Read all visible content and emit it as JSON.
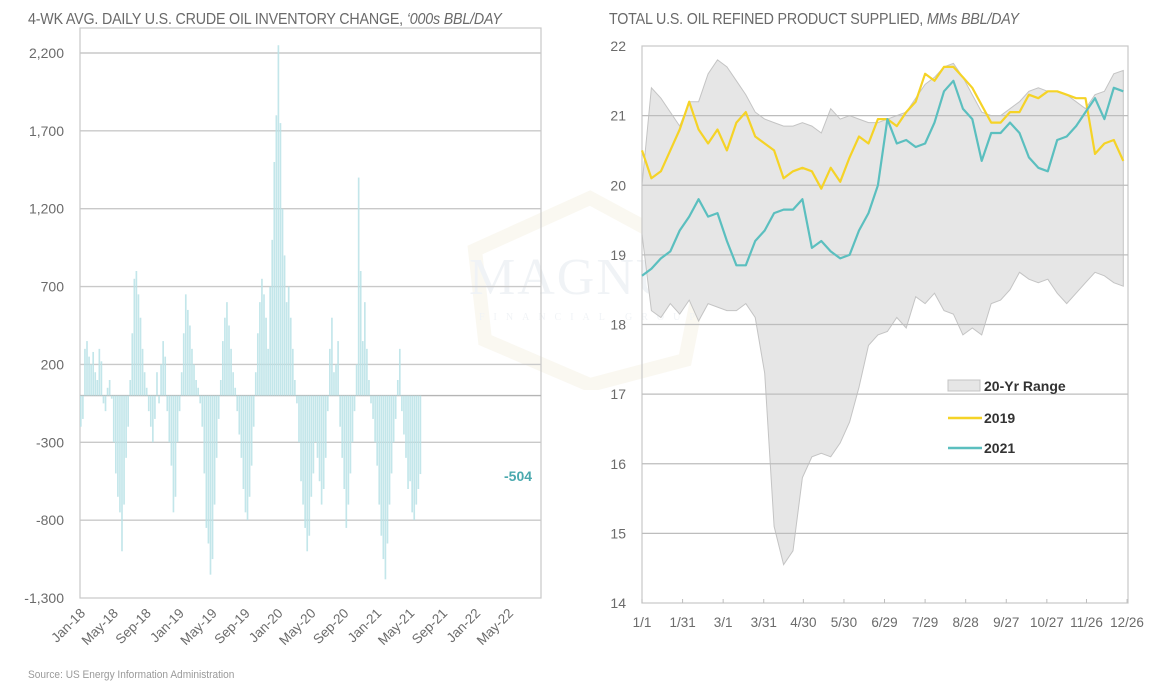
{
  "source": "Source: US Energy Information Administration",
  "watermark": {
    "text": "MAGNUS",
    "subtext": "FINANCIAL GROUP"
  },
  "chart_data": [
    {
      "type": "bar",
      "title": "4-WK AVG. DAILY U.S. CRUDE OIL INVENTORY CHANGE, ",
      "title_units": "‘000s BBL/DAY",
      "xlabel": "",
      "ylabel": "",
      "ylim": [
        -1300,
        2200
      ],
      "yticks": [
        2200,
        1700,
        1200,
        700,
        200,
        -300,
        -800,
        -1300
      ],
      "ytick_labels": [
        "2,200",
        "1,700",
        "1,200",
        "700",
        "200",
        "-300",
        "-800",
        "-1,300"
      ],
      "xlim_months": [
        0,
        56
      ],
      "xticks_months": [
        0,
        4,
        8,
        12,
        16,
        20,
        24,
        28,
        32,
        36,
        40,
        44,
        48,
        52
      ],
      "xtick_labels": [
        "Jan-18",
        "May-18",
        "Sep-18",
        "Jan-19",
        "May-19",
        "Sep-19",
        "Jan-20",
        "May-20",
        "Sep-20",
        "Jan-21",
        "May-21",
        "Sep-21",
        "Jan-22",
        "May-22"
      ],
      "grid": true,
      "color": "#b8e2e6",
      "bar_interval_months": 0.25,
      "values": [
        -200,
        -150,
        300,
        350,
        250,
        200,
        280,
        150,
        100,
        300,
        220,
        -50,
        -100,
        50,
        100,
        -20,
        -300,
        -500,
        -650,
        -750,
        -1000,
        -700,
        -400,
        -200,
        100,
        400,
        750,
        800,
        650,
        500,
        300,
        150,
        50,
        -100,
        -200,
        -300,
        -150,
        150,
        -50,
        200,
        350,
        250,
        -100,
        -300,
        -450,
        -750,
        -650,
        -300,
        -100,
        150,
        400,
        650,
        550,
        450,
        300,
        200,
        100,
        50,
        -50,
        -200,
        -500,
        -850,
        -950,
        -1150,
        -1050,
        -700,
        -400,
        -150,
        100,
        350,
        500,
        600,
        450,
        300,
        150,
        50,
        -100,
        -250,
        -400,
        -600,
        -750,
        -800,
        -650,
        -450,
        -200,
        150,
        400,
        600,
        750,
        650,
        500,
        300,
        700,
        1000,
        1500,
        1800,
        2250,
        1750,
        1200,
        900,
        600,
        700,
        500,
        300,
        100,
        -50,
        -300,
        -550,
        -700,
        -850,
        -1000,
        -900,
        -650,
        -500,
        -300,
        -400,
        -550,
        -700,
        -600,
        -400,
        -100,
        300,
        500,
        150,
        200,
        350,
        -200,
        -400,
        -600,
        -850,
        -700,
        -500,
        -300,
        -100,
        200,
        1400,
        800,
        350,
        600,
        300,
        100,
        -50,
        -150,
        -300,
        -450,
        -700,
        -900,
        -1050,
        -1180,
        -950,
        -700,
        -500,
        -300,
        -150,
        100,
        300,
        -100,
        -250,
        -400,
        -600,
        -550,
        -750,
        -800,
        -700,
        -600,
        -504
      ],
      "annotation": {
        "text": "-504",
        "color": "#4aa9ae"
      }
    },
    {
      "type": "line",
      "title": "TOTAL U.S. OIL REFINED PRODUCT SUPPLIED, ",
      "title_units": "MMs BBL/DAY",
      "xlabel": "",
      "ylabel": "",
      "ylim": [
        14,
        22
      ],
      "yticks": [
        22,
        21,
        20,
        19,
        18,
        17,
        16,
        15,
        14
      ],
      "xlim_weeks": [
        1,
        52.5
      ],
      "xticks_weeks": [
        1,
        5.3,
        9.6,
        13.9,
        18.1,
        22.4,
        26.7,
        31,
        35.3,
        39.6,
        43.9,
        48.1,
        52.4
      ],
      "xtick_labels": [
        "1/1",
        "1/31",
        "3/1",
        "3/31",
        "4/30",
        "5/30",
        "6/29",
        "7/29",
        "8/28",
        "9/27",
        "10/27",
        "11/26",
        "12/26"
      ],
      "grid": true,
      "legend": {
        "position": "center-right",
        "entries": [
          "20-Yr Range",
          "2019",
          "2021"
        ]
      },
      "range": {
        "name": "20-Yr Range",
        "color": "#e6e6e6",
        "upper": [
          20.0,
          21.4,
          21.25,
          21.05,
          20.85,
          21.2,
          21.2,
          21.6,
          21.8,
          21.7,
          21.5,
          21.3,
          21.05,
          20.95,
          20.9,
          20.85,
          20.85,
          20.9,
          20.85,
          20.75,
          21.1,
          20.95,
          21.0,
          20.95,
          20.9,
          20.9,
          20.95,
          21.0,
          21.05,
          21.25,
          21.45,
          21.55,
          21.7,
          21.75,
          21.55,
          21.3,
          21.05,
          21.0,
          21.0,
          21.1,
          21.2,
          21.35,
          21.4,
          21.35,
          21.35,
          21.3,
          21.2,
          21.1,
          21.3,
          21.35,
          21.6,
          21.65
        ],
        "lower": [
          19.3,
          18.2,
          18.1,
          18.3,
          18.15,
          18.35,
          18.05,
          18.3,
          18.25,
          18.2,
          18.2,
          18.3,
          18.1,
          17.3,
          15.1,
          14.55,
          14.75,
          15.8,
          16.1,
          16.15,
          16.1,
          16.3,
          16.6,
          17.1,
          17.7,
          17.85,
          17.9,
          18.1,
          17.95,
          18.4,
          18.3,
          18.45,
          18.2,
          18.15,
          17.85,
          17.95,
          17.85,
          18.3,
          18.35,
          18.5,
          18.75,
          18.65,
          18.6,
          18.65,
          18.45,
          18.3,
          18.45,
          18.6,
          18.75,
          18.7,
          18.6,
          18.55
        ]
      },
      "series": [
        {
          "name": "2019",
          "color": "#f5d327",
          "values": [
            20.5,
            20.1,
            20.2,
            20.5,
            20.8,
            21.2,
            20.8,
            20.6,
            20.8,
            20.5,
            20.9,
            21.05,
            20.7,
            20.6,
            20.5,
            20.1,
            20.2,
            20.25,
            20.2,
            19.95,
            20.25,
            20.05,
            20.4,
            20.7,
            20.6,
            20.95,
            20.95,
            20.85,
            21.05,
            21.2,
            21.6,
            21.5,
            21.7,
            21.7,
            21.55,
            21.4,
            21.15,
            20.9,
            20.9,
            21.05,
            21.05,
            21.3,
            21.25,
            21.35,
            21.35,
            21.3,
            21.25,
            21.25,
            20.45,
            20.6,
            20.65,
            20.35
          ]
        },
        {
          "name": "2021",
          "color": "#5bbfbf",
          "values": [
            18.7,
            18.8,
            18.95,
            19.05,
            19.35,
            19.55,
            19.8,
            19.55,
            19.6,
            19.2,
            18.85,
            18.85,
            19.2,
            19.35,
            19.6,
            19.65,
            19.65,
            19.8,
            19.1,
            19.2,
            19.05,
            18.95,
            19.0,
            19.35,
            19.6,
            20.0,
            20.95,
            20.6,
            20.65,
            20.55,
            20.6,
            20.9,
            21.35,
            21.5,
            21.1,
            20.95,
            20.35,
            20.75,
            20.75,
            20.9,
            20.75,
            20.4,
            20.25,
            20.2,
            20.65,
            20.7,
            20.85,
            21.05,
            21.25,
            20.95,
            21.4,
            21.35
          ]
        }
      ]
    }
  ]
}
